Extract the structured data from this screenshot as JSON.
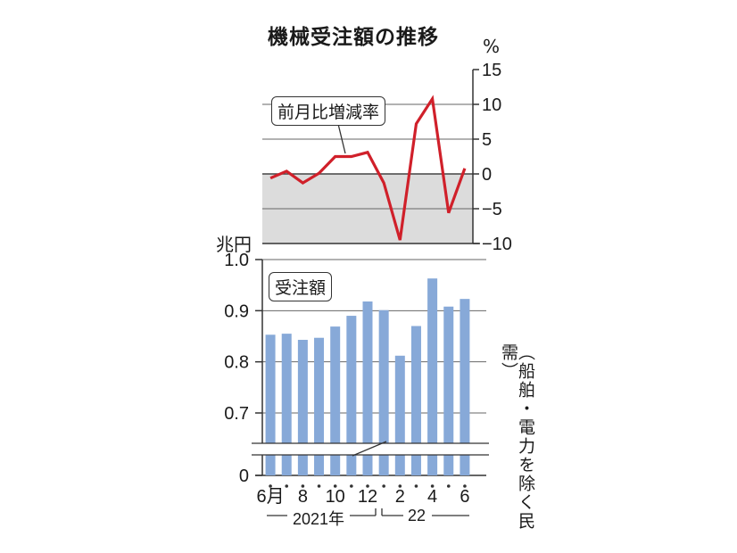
{
  "title": "機械受注額の推移",
  "note": "（船舶・電力を除く民需）",
  "chart_data": [
    {
      "type": "line",
      "label": "前月比増減率",
      "unit": "%",
      "yticks": [
        "15",
        "10",
        "5",
        "0",
        "−5",
        "−10"
      ],
      "ylim": [
        -10,
        15
      ],
      "grid": true,
      "series": [
        {
          "name": "前月比増減率",
          "color": "#d0202a",
          "values": [
            -0.6,
            0.4,
            -1.3,
            0.1,
            2.5,
            2.5,
            3.1,
            -1.3,
            -9.5,
            7.2,
            10.8,
            -5.6,
            0.8
          ]
        }
      ]
    },
    {
      "type": "bar",
      "label": "受注額",
      "unit": "兆円",
      "yticks": [
        "1.0",
        "0.9",
        "0.8",
        "0.7",
        "0"
      ],
      "ylim": [
        0.6,
        1.0
      ],
      "axis_break": true,
      "grid": true,
      "color": "#87a9d8",
      "categories": [
        "6月",
        "",
        "8",
        "",
        "10",
        "",
        "12",
        "",
        "2",
        "",
        "4",
        "",
        "6"
      ],
      "values": [
        0.853,
        0.855,
        0.843,
        0.847,
        0.869,
        0.89,
        0.918,
        0.901,
        0.812,
        0.87,
        0.963,
        0.908,
        0.923
      ]
    }
  ],
  "x_group_labels": [
    "2021年",
    "22"
  ]
}
